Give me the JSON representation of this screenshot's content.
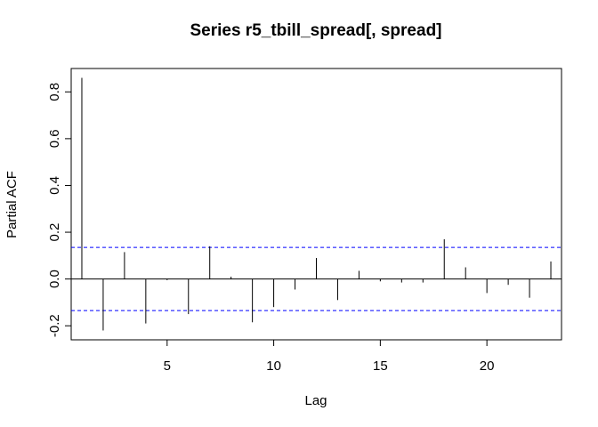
{
  "chart_data": {
    "type": "bar",
    "title": "Series  r5_tbill_spread[, spread]",
    "xlabel": "Lag",
    "ylabel": "Partial ACF",
    "xlim": [
      0.5,
      23.5
    ],
    "ylim": [
      -0.26,
      0.9
    ],
    "x_ticks": [
      5,
      10,
      15,
      20
    ],
    "x_tick_labels": [
      "5",
      "10",
      "15",
      "20"
    ],
    "y_ticks": [
      -0.2,
      0.0,
      0.2,
      0.4,
      0.6,
      0.8
    ],
    "y_tick_labels": [
      "-0.2",
      "0.0",
      "0.2",
      "0.4",
      "0.6",
      "0.8"
    ],
    "confidence_bounds": [
      0.135,
      -0.135
    ],
    "confidence_color": "#0000ff",
    "grid": false,
    "lags": [
      1,
      2,
      3,
      4,
      5,
      6,
      7,
      8,
      9,
      10,
      11,
      12,
      13,
      14,
      15,
      16,
      17,
      18,
      19,
      20,
      21,
      22,
      23
    ],
    "values": [
      0.86,
      -0.22,
      0.115,
      -0.19,
      -0.005,
      -0.15,
      0.14,
      0.01,
      -0.185,
      -0.12,
      -0.045,
      0.09,
      -0.09,
      0.035,
      -0.01,
      -0.015,
      -0.015,
      0.17,
      0.05,
      -0.06,
      -0.025,
      -0.08,
      0.075
    ]
  }
}
